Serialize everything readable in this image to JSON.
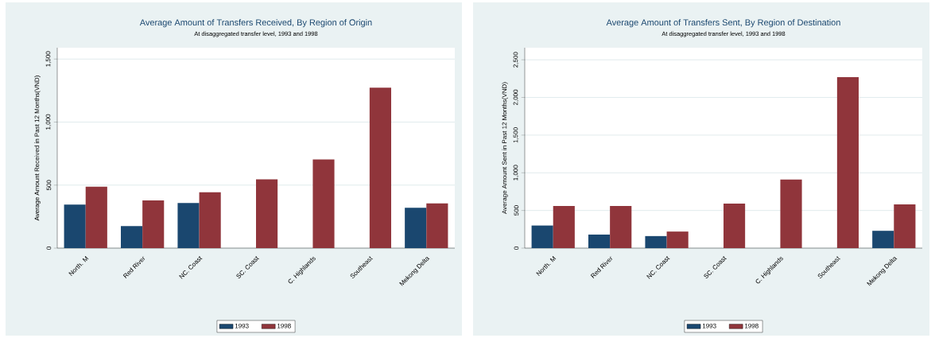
{
  "chart_data": [
    {
      "type": "bar",
      "title": "Average Amount of Transfers Received, By Region of Origin",
      "subtitle": "At disaggregated transfer level, 1993 and 1998",
      "ylabel": "Average Amount Received in Past 12 Months(VND)",
      "categories": [
        "North. M",
        "Red River",
        "NC. Coast",
        "SC. Coast",
        "C. Highlands",
        "Southeast",
        "Mekong Delta"
      ],
      "series": [
        {
          "name": "1993",
          "color": "#1a476f",
          "values": [
            346,
            175,
            358,
            null,
            null,
            null,
            320
          ]
        },
        {
          "name": "1998",
          "color": "#90353b",
          "values": [
            488,
            379,
            443,
            545,
            704,
            1273,
            355
          ]
        }
      ],
      "ylim": [
        0,
        1590
      ],
      "yticks": [
        {
          "value": 0,
          "label": "0"
        },
        {
          "value": 500,
          "label": "500"
        },
        {
          "value": 1000,
          "label": "1,000"
        },
        {
          "value": 1500,
          "label": "1,500"
        }
      ],
      "grid": "y",
      "legend": "bottom"
    },
    {
      "type": "bar",
      "title": "Average Amount of Transfers Sent, By Region of Destination",
      "subtitle": "At disaggregated transfer level, 1993 and 1998",
      "ylabel": "Average Amount Sent in Past 12 Months(VND)",
      "categories": [
        "North. M",
        "Red River",
        "NC. Coast",
        "SC. Coast",
        "C. Highlands",
        "Southeast",
        "Mekong Delta"
      ],
      "series": [
        {
          "name": "1993",
          "color": "#1a476f",
          "values": [
            300,
            180,
            160,
            null,
            null,
            null,
            230
          ]
        },
        {
          "name": "1998",
          "color": "#90353b",
          "values": [
            560,
            560,
            220,
            590,
            910,
            2270,
            580
          ]
        }
      ],
      "ylim": [
        0,
        2660
      ],
      "yticks": [
        {
          "value": 0,
          "label": "0"
        },
        {
          "value": 500,
          "label": "500"
        },
        {
          "value": 1000,
          "label": "1,000"
        },
        {
          "value": 1500,
          "label": "1,500"
        },
        {
          "value": 2000,
          "label": "2,000"
        },
        {
          "value": 2500,
          "label": "2,500"
        }
      ],
      "grid": "y",
      "legend": "bottom"
    }
  ]
}
